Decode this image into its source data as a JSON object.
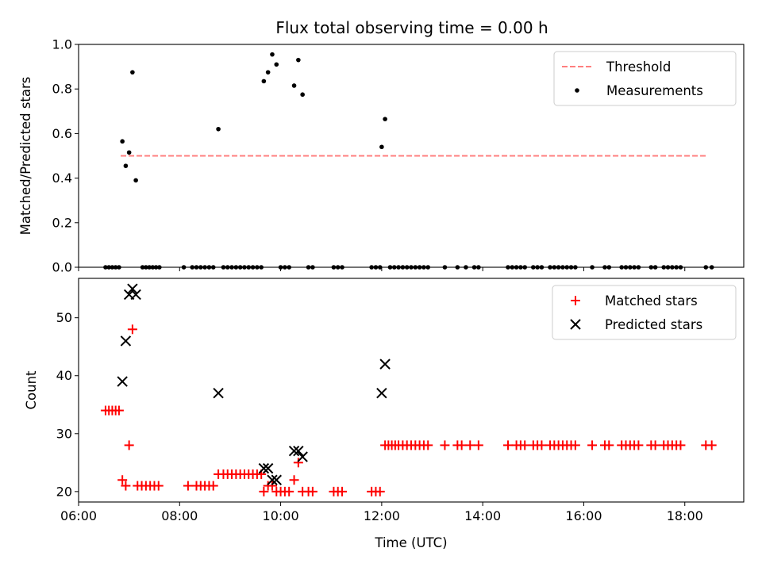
{
  "title": "Flux total observing time = 0.00 h",
  "chart_data": [
    {
      "type": "scatter",
      "title": "Flux total observing time = 0.00 h",
      "xlabel": "",
      "ylabel": "Matched/Predicted stars",
      "x_units": "hours UTC",
      "xlim": [
        "06:00",
        "19:10"
      ],
      "ylim": [
        0,
        1.0
      ],
      "yticks": [
        "0.0",
        "0.2",
        "0.4",
        "0.6",
        "0.8",
        "1.0"
      ],
      "legend": {
        "position": "top-right",
        "entries": [
          "Threshold",
          "Measurements"
        ]
      },
      "series": [
        {
          "name": "Threshold",
          "kind": "dashed-line",
          "color": "#ff7f7f",
          "points": [
            [
              "06:50",
              0.5
            ],
            [
              "18:25",
              0.5
            ]
          ]
        },
        {
          "name": "Measurements",
          "kind": "dot",
          "color": "#000000",
          "points": [
            [
              "06:32",
              0
            ],
            [
              "06:36",
              0
            ],
            [
              "06:40",
              0
            ],
            [
              "06:44",
              0
            ],
            [
              "06:48",
              0
            ],
            [
              "06:52",
              0.565
            ],
            [
              "06:56",
              0.455
            ],
            [
              "07:00",
              0.515
            ],
            [
              "07:04",
              0.875
            ],
            [
              "07:08",
              0.39
            ],
            [
              "07:16",
              0
            ],
            [
              "07:20",
              0
            ],
            [
              "07:24",
              0
            ],
            [
              "07:28",
              0
            ],
            [
              "07:32",
              0
            ],
            [
              "07:36",
              0
            ],
            [
              "08:05",
              0
            ],
            [
              "08:15",
              0
            ],
            [
              "08:20",
              0
            ],
            [
              "08:25",
              0
            ],
            [
              "08:30",
              0
            ],
            [
              "08:35",
              0
            ],
            [
              "08:40",
              0
            ],
            [
              "08:46",
              0.62
            ],
            [
              "08:52",
              0
            ],
            [
              "08:57",
              0
            ],
            [
              "09:02",
              0
            ],
            [
              "09:07",
              0
            ],
            [
              "09:12",
              0
            ],
            [
              "09:17",
              0
            ],
            [
              "09:22",
              0
            ],
            [
              "09:27",
              0
            ],
            [
              "09:32",
              0
            ],
            [
              "09:37",
              0
            ],
            [
              "09:40",
              0.835
            ],
            [
              "09:45",
              0.875
            ],
            [
              "09:50",
              0.955
            ],
            [
              "09:55",
              0.91
            ],
            [
              "10:00",
              0
            ],
            [
              "10:05",
              0
            ],
            [
              "10:10",
              0
            ],
            [
              "10:16",
              0.815
            ],
            [
              "10:21",
              0.93
            ],
            [
              "10:26",
              0.775
            ],
            [
              "10:33",
              0
            ],
            [
              "10:38",
              0
            ],
            [
              "11:03",
              0
            ],
            [
              "11:08",
              0
            ],
            [
              "11:13",
              0
            ],
            [
              "11:48",
              0
            ],
            [
              "11:53",
              0
            ],
            [
              "11:58",
              0
            ],
            [
              "12:00",
              0.54
            ],
            [
              "12:04",
              0.665
            ],
            [
              "12:10",
              0
            ],
            [
              "12:15",
              0
            ],
            [
              "12:20",
              0
            ],
            [
              "12:25",
              0
            ],
            [
              "12:30",
              0
            ],
            [
              "12:35",
              0
            ],
            [
              "12:40",
              0
            ],
            [
              "12:45",
              0
            ],
            [
              "12:50",
              0
            ],
            [
              "12:55",
              0
            ],
            [
              "13:15",
              0
            ],
            [
              "13:30",
              0
            ],
            [
              "13:40",
              0
            ],
            [
              "13:50",
              0
            ],
            [
              "13:55",
              0
            ],
            [
              "14:30",
              0
            ],
            [
              "14:35",
              0
            ],
            [
              "14:40",
              0
            ],
            [
              "14:45",
              0
            ],
            [
              "14:50",
              0
            ],
            [
              "15:00",
              0
            ],
            [
              "15:05",
              0
            ],
            [
              "15:10",
              0
            ],
            [
              "15:20",
              0
            ],
            [
              "15:25",
              0
            ],
            [
              "15:30",
              0
            ],
            [
              "15:35",
              0
            ],
            [
              "15:40",
              0
            ],
            [
              "15:45",
              0
            ],
            [
              "15:50",
              0
            ],
            [
              "16:10",
              0
            ],
            [
              "16:25",
              0
            ],
            [
              "16:30",
              0
            ],
            [
              "16:45",
              0
            ],
            [
              "16:50",
              0
            ],
            [
              "16:55",
              0
            ],
            [
              "17:00",
              0
            ],
            [
              "17:05",
              0
            ],
            [
              "17:20",
              0
            ],
            [
              "17:25",
              0
            ],
            [
              "17:35",
              0
            ],
            [
              "17:40",
              0
            ],
            [
              "17:45",
              0
            ],
            [
              "17:50",
              0
            ],
            [
              "17:55",
              0
            ],
            [
              "18:25",
              0
            ],
            [
              "18:32",
              0
            ]
          ]
        }
      ]
    },
    {
      "type": "scatter",
      "xlabel": "Time (UTC)",
      "ylabel": "Count",
      "x_units": "hours UTC",
      "xlim": [
        "06:00",
        "19:10"
      ],
      "ylim": [
        18.2,
        56.8
      ],
      "xticks": [
        "06:00",
        "08:00",
        "10:00",
        "12:00",
        "14:00",
        "16:00",
        "18:00"
      ],
      "yticks": [
        "20",
        "30",
        "40",
        "50"
      ],
      "legend": {
        "position": "top-right",
        "entries": [
          "Matched stars",
          "Predicted stars"
        ]
      },
      "series": [
        {
          "name": "Matched stars",
          "kind": "plus",
          "color": "#ff0000",
          "points": [
            [
              "06:32",
              34
            ],
            [
              "06:36",
              34
            ],
            [
              "06:40",
              34
            ],
            [
              "06:44",
              34
            ],
            [
              "06:48",
              34
            ],
            [
              "06:52",
              22
            ],
            [
              "06:56",
              21
            ],
            [
              "07:00",
              28
            ],
            [
              "07:04",
              48
            ],
            [
              "07:10",
              21
            ],
            [
              "07:15",
              21
            ],
            [
              "07:20",
              21
            ],
            [
              "07:25",
              21
            ],
            [
              "07:30",
              21
            ],
            [
              "07:35",
              21
            ],
            [
              "08:10",
              21
            ],
            [
              "08:20",
              21
            ],
            [
              "08:25",
              21
            ],
            [
              "08:30",
              21
            ],
            [
              "08:35",
              21
            ],
            [
              "08:40",
              21
            ],
            [
              "08:46",
              23
            ],
            [
              "08:52",
              23
            ],
            [
              "08:57",
              23
            ],
            [
              "09:02",
              23
            ],
            [
              "09:07",
              23
            ],
            [
              "09:12",
              23
            ],
            [
              "09:17",
              23
            ],
            [
              "09:22",
              23
            ],
            [
              "09:27",
              23
            ],
            [
              "09:32",
              23
            ],
            [
              "09:37",
              23
            ],
            [
              "09:40",
              20
            ],
            [
              "09:45",
              21
            ],
            [
              "09:50",
              21
            ],
            [
              "09:55",
              20
            ],
            [
              "10:00",
              20
            ],
            [
              "10:05",
              20
            ],
            [
              "10:10",
              20
            ],
            [
              "10:16",
              22
            ],
            [
              "10:21",
              25
            ],
            [
              "10:26",
              20
            ],
            [
              "10:33",
              20
            ],
            [
              "10:38",
              20
            ],
            [
              "11:03",
              20
            ],
            [
              "11:08",
              20
            ],
            [
              "11:13",
              20
            ],
            [
              "11:48",
              20
            ],
            [
              "11:53",
              20
            ],
            [
              "11:58",
              20
            ],
            [
              "12:04",
              28
            ],
            [
              "12:08",
              28
            ],
            [
              "12:12",
              28
            ],
            [
              "12:16",
              28
            ],
            [
              "12:20",
              28
            ],
            [
              "12:25",
              28
            ],
            [
              "12:30",
              28
            ],
            [
              "12:35",
              28
            ],
            [
              "12:40",
              28
            ],
            [
              "12:45",
              28
            ],
            [
              "12:50",
              28
            ],
            [
              "12:55",
              28
            ],
            [
              "13:15",
              28
            ],
            [
              "13:30",
              28
            ],
            [
              "13:35",
              28
            ],
            [
              "13:45",
              28
            ],
            [
              "13:55",
              28
            ],
            [
              "14:30",
              28
            ],
            [
              "14:40",
              28
            ],
            [
              "14:45",
              28
            ],
            [
              "14:50",
              28
            ],
            [
              "15:00",
              28
            ],
            [
              "15:05",
              28
            ],
            [
              "15:10",
              28
            ],
            [
              "15:20",
              28
            ],
            [
              "15:25",
              28
            ],
            [
              "15:30",
              28
            ],
            [
              "15:35",
              28
            ],
            [
              "15:40",
              28
            ],
            [
              "15:45",
              28
            ],
            [
              "15:50",
              28
            ],
            [
              "16:10",
              28
            ],
            [
              "16:25",
              28
            ],
            [
              "16:30",
              28
            ],
            [
              "16:45",
              28
            ],
            [
              "16:50",
              28
            ],
            [
              "16:55",
              28
            ],
            [
              "17:00",
              28
            ],
            [
              "17:05",
              28
            ],
            [
              "17:20",
              28
            ],
            [
              "17:25",
              28
            ],
            [
              "17:35",
              28
            ],
            [
              "17:40",
              28
            ],
            [
              "17:45",
              28
            ],
            [
              "17:50",
              28
            ],
            [
              "17:55",
              28
            ],
            [
              "18:25",
              28
            ],
            [
              "18:32",
              28
            ]
          ]
        },
        {
          "name": "Predicted stars",
          "kind": "x",
          "color": "#000000",
          "points": [
            [
              "06:52",
              39
            ],
            [
              "06:56",
              46
            ],
            [
              "07:00",
              54
            ],
            [
              "07:04",
              55
            ],
            [
              "07:08",
              54
            ],
            [
              "08:46",
              37
            ],
            [
              "09:40",
              24
            ],
            [
              "09:45",
              24
            ],
            [
              "09:50",
              22
            ],
            [
              "09:55",
              22
            ],
            [
              "10:16",
              27
            ],
            [
              "10:21",
              27
            ],
            [
              "10:26",
              26
            ],
            [
              "12:00",
              37
            ],
            [
              "12:04",
              42
            ]
          ]
        }
      ]
    }
  ]
}
